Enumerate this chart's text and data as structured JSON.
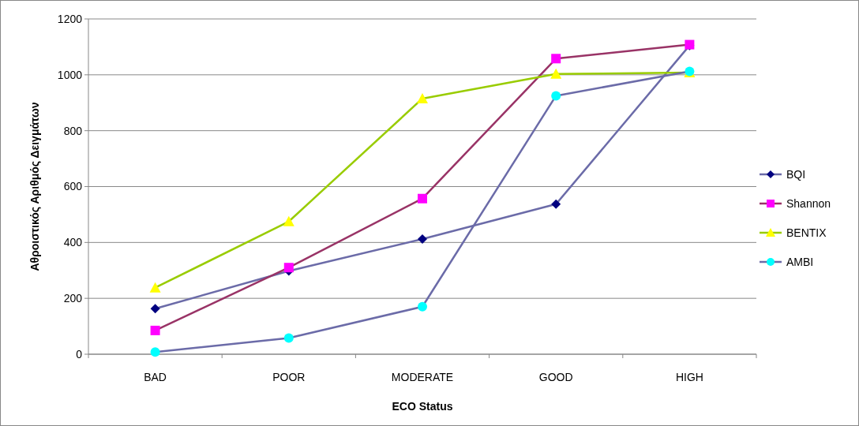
{
  "chart_data": {
    "type": "line",
    "xlabel": "ECO Status",
    "ylabel": "Αθροιστικός Αριθμός Δειγμάτων",
    "categories": [
      "BAD",
      "POOR",
      "MODERATE",
      "GOOD",
      "HIGH"
    ],
    "series": [
      {
        "name": "BQI",
        "color": "#6b6ba8",
        "colors": [
          "#000080",
          "#000080",
          "#000080",
          "#000080",
          "#000080"
        ],
        "marker": "diamond",
        "values": [
          163,
          298,
          412,
          537,
          1105
        ]
      },
      {
        "name": "Shannon",
        "color": "#993366",
        "colors": [
          "#ff00ff",
          "#ff00ff",
          "#ff00ff",
          "#ff00ff",
          "#ff00ff"
        ],
        "marker": "square",
        "values": [
          85,
          310,
          557,
          1058,
          1108
        ]
      },
      {
        "name": "BENTIX",
        "color": "#99cc00",
        "colors": [
          "#ffff00",
          "#ffff00",
          "#ffff00",
          "#ffff00",
          "#ffff00"
        ],
        "marker": "triangle",
        "values": [
          238,
          475,
          915,
          1003,
          1008
        ]
      },
      {
        "name": "AMBI",
        "color": "#6b6ba8",
        "colors": [
          "#00ffff",
          "#00ffff",
          "#00ffff",
          "#00ffff",
          "#00ffff"
        ],
        "marker": "circle",
        "values": [
          8,
          58,
          170,
          925,
          1012
        ]
      }
    ],
    "ylim": [
      0,
      1200
    ],
    "yticks": [
      0,
      200,
      400,
      600,
      800,
      1000,
      1200
    ],
    "grid": "y",
    "legend": "right"
  }
}
